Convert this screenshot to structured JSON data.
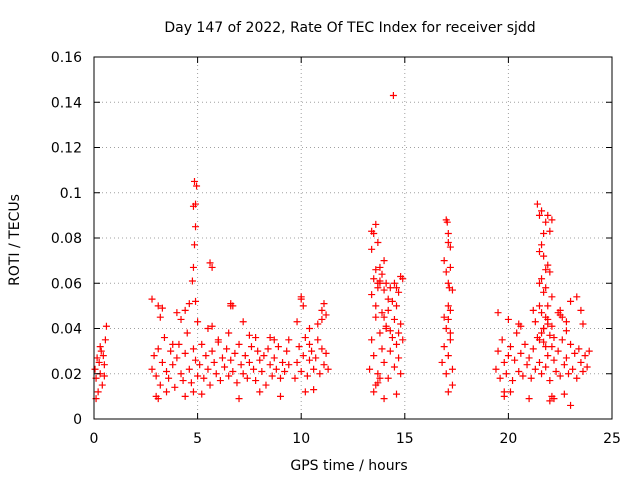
{
  "chart_data": {
    "type": "scatter",
    "title": "Day 147 of 2022, Rate Of TEC Index for receiver sjdd",
    "xlabel": "GPS time / hours",
    "ylabel": "ROTI / TECUs",
    "xlim": [
      0,
      25
    ],
    "ylim": [
      0,
      0.16
    ],
    "xticks": [
      0,
      5,
      10,
      15,
      20,
      25
    ],
    "yticks": [
      0,
      0.02,
      0.04,
      0.06,
      0.08,
      0.1,
      0.12,
      0.14,
      0.16
    ],
    "grid": true,
    "marker": "plus",
    "color": "#ff0000",
    "x": [
      0.05,
      0.1,
      0.15,
      0.2,
      0.25,
      0.3,
      0.35,
      0.4,
      0.45,
      0.5,
      0.55,
      0.6,
      0.1,
      0.3,
      0.5,
      2.8,
      2.9,
      3.0,
      3.1,
      3.2,
      3.3,
      3.4,
      3.5,
      3.6,
      3.7,
      3.8,
      3.9,
      4.0,
      4.1,
      4.2,
      4.3,
      4.4,
      4.5,
      4.6,
      4.7,
      4.8,
      4.9,
      5.0,
      5.1,
      5.2,
      5.3,
      5.4,
      5.5,
      5.6,
      5.7,
      5.8,
      5.9,
      6.0,
      6.1,
      6.2,
      6.3,
      6.4,
      6.5,
      6.6,
      6.7,
      6.8,
      6.9,
      7.0,
      7.1,
      7.2,
      7.3,
      7.4,
      7.5,
      7.6,
      7.7,
      7.8,
      7.9,
      8.0,
      8.1,
      8.2,
      8.3,
      8.4,
      8.5,
      8.6,
      8.7,
      8.8,
      8.9,
      9.0,
      9.1,
      9.2,
      9.3,
      9.4,
      2.8,
      3.0,
      3.2,
      3.1,
      3.5,
      4.0,
      4.2,
      4.4,
      4.6,
      4.8,
      5.0,
      5.2,
      5.5,
      6.0,
      6.5,
      7.0,
      7.5,
      8.0,
      8.5,
      9.0,
      9.4,
      3.3,
      3.8,
      4.9,
      5.7,
      6.6,
      7.8,
      8.7,
      4.85,
      4.9,
      4.8,
      4.95,
      4.9,
      4.85,
      4.8,
      4.75,
      5.6,
      5.7,
      6.6,
      6.7,
      7.2,
      4.4,
      3.1,
      9.7,
      9.8,
      9.9,
      10.0,
      10.1,
      10.2,
      10.3,
      10.4,
      10.5,
      10.6,
      10.7,
      10.8,
      10.9,
      11.0,
      11.1,
      11.2,
      11.3,
      9.8,
      10.0,
      10.2,
      10.4,
      10.6,
      10.8,
      11.0,
      11.2,
      10.0,
      10.1,
      11.0,
      11.1,
      10.4,
      13.3,
      13.4,
      13.5,
      13.6,
      13.7,
      13.8,
      13.9,
      14.0,
      14.1,
      14.2,
      14.3,
      14.4,
      14.5,
      14.6,
      14.7,
      14.8,
      14.9,
      13.4,
      13.6,
      13.8,
      14.0,
      14.2,
      14.4,
      14.6,
      14.8,
      13.5,
      13.7,
      13.9,
      14.1,
      14.3,
      14.5,
      14.7,
      13.6,
      13.8,
      14.0,
      14.2,
      14.6,
      13.4,
      13.5,
      13.6,
      13.7,
      13.8,
      13.9,
      14.0,
      14.1,
      14.3,
      14.5,
      14.7,
      14.8,
      14.9,
      13.5,
      13.6,
      13.7,
      13.8,
      14.6,
      13.4,
      13.7,
      14.45,
      14.0,
      16.8,
      16.9,
      17.0,
      17.1,
      17.2,
      17.3,
      16.9,
      17.0,
      17.1,
      17.2,
      17.3,
      17.0,
      17.1,
      17.2,
      16.9,
      17.0,
      17.1,
      17.2,
      17.3,
      17.05,
      17.1,
      17.15,
      17.2,
      17.1,
      17.1,
      19.4,
      19.5,
      19.6,
      19.7,
      19.8,
      19.9,
      20.0,
      20.1,
      20.2,
      20.3,
      20.4,
      20.5,
      20.6,
      20.7,
      20.8,
      20.9,
      21.0,
      21.1,
      21.2,
      21.3,
      21.4,
      21.5,
      21.6,
      21.7,
      21.8,
      21.9,
      22.0,
      22.1,
      22.2,
      22.3,
      22.4,
      22.5,
      22.6,
      22.7,
      22.8,
      22.9,
      23.0,
      23.1,
      23.2,
      23.3,
      23.4,
      23.5,
      23.6,
      23.7,
      23.8,
      23.9,
      19.5,
      20.0,
      20.5,
      21.0,
      21.5,
      22.0,
      22.5,
      23.0,
      23.5,
      19.8,
      20.6,
      21.3,
      22.1,
      22.8,
      23.6,
      21.4,
      21.5,
      21.6,
      21.7,
      21.8,
      21.9,
      22.0,
      22.1,
      21.5,
      21.6,
      21.7,
      21.8,
      21.9,
      22.0,
      21.6,
      21.8,
      21.5,
      21.7,
      21.9,
      22.1,
      21.6,
      21.8,
      21.7,
      21.9,
      21.5,
      21.6,
      21.7,
      21.8,
      21.9,
      22.0,
      22.1,
      22.2,
      22.5,
      23.0,
      23.3,
      22.4,
      22.6,
      22.8,
      21.2,
      20.1,
      19.8,
      22.2,
      22.7
    ],
    "y": [
      0.022,
      0.018,
      0.027,
      0.012,
      0.025,
      0.02,
      0.03,
      0.015,
      0.028,
      0.024,
      0.035,
      0.041,
      0.009,
      0.032,
      0.019,
      0.022,
      0.028,
      0.019,
      0.031,
      0.015,
      0.025,
      0.036,
      0.021,
      0.018,
      0.03,
      0.024,
      0.014,
      0.027,
      0.033,
      0.02,
      0.017,
      0.029,
      0.038,
      0.022,
      0.016,
      0.031,
      0.026,
      0.019,
      0.024,
      0.033,
      0.018,
      0.028,
      0.022,
      0.015,
      0.03,
      0.025,
      0.02,
      0.034,
      0.017,
      0.027,
      0.023,
      0.031,
      0.019,
      0.026,
      0.021,
      0.029,
      0.016,
      0.033,
      0.024,
      0.02,
      0.028,
      0.018,
      0.025,
      0.032,
      0.022,
      0.017,
      0.03,
      0.026,
      0.021,
      0.028,
      0.015,
      0.031,
      0.024,
      0.019,
      0.027,
      0.022,
      0.032,
      0.018,
      0.025,
      0.021,
      0.03,
      0.024,
      0.053,
      0.01,
      0.045,
      0.009,
      0.012,
      0.047,
      0.044,
      0.01,
      0.051,
      0.012,
      0.043,
      0.011,
      0.04,
      0.035,
      0.038,
      0.009,
      0.037,
      0.012,
      0.036,
      0.01,
      0.035,
      0.049,
      0.033,
      0.052,
      0.041,
      0.05,
      0.036,
      0.035,
      0.105,
      0.095,
      0.094,
      0.103,
      0.085,
      0.077,
      0.067,
      0.061,
      0.069,
      0.067,
      0.051,
      0.05,
      0.043,
      0.048,
      0.05,
      0.018,
      0.025,
      0.032,
      0.021,
      0.028,
      0.036,
      0.019,
      0.026,
      0.03,
      0.022,
      0.027,
      0.035,
      0.02,
      0.031,
      0.024,
      0.029,
      0.022,
      0.043,
      0.053,
      0.012,
      0.04,
      0.013,
      0.042,
      0.044,
      0.046,
      0.054,
      0.05,
      0.048,
      0.051,
      0.033,
      0.022,
      0.035,
      0.028,
      0.045,
      0.02,
      0.038,
      0.031,
      0.025,
      0.04,
      0.018,
      0.03,
      0.036,
      0.023,
      0.033,
      0.027,
      0.02,
      0.035,
      0.055,
      0.05,
      0.06,
      0.045,
      0.048,
      0.052,
      0.05,
      0.042,
      0.062,
      0.058,
      0.047,
      0.041,
      0.039,
      0.044,
      0.038,
      0.066,
      0.061,
      0.057,
      0.053,
      0.058,
      0.083,
      0.082,
      0.086,
      0.078,
      0.067,
      0.064,
      0.07,
      0.06,
      0.058,
      0.06,
      0.056,
      0.063,
      0.062,
      0.012,
      0.015,
      0.016,
      0.018,
      0.011,
      0.075,
      0.06,
      0.143,
      0.009,
      0.025,
      0.032,
      0.02,
      0.028,
      0.035,
      0.022,
      0.045,
      0.04,
      0.012,
      0.038,
      0.015,
      0.088,
      0.082,
      0.076,
      0.07,
      0.065,
      0.06,
      0.067,
      0.057,
      0.087,
      0.078,
      0.058,
      0.048,
      0.044,
      0.05,
      0.022,
      0.03,
      0.018,
      0.035,
      0.025,
      0.02,
      0.028,
      0.032,
      0.017,
      0.026,
      0.038,
      0.021,
      0.029,
      0.019,
      0.033,
      0.024,
      0.027,
      0.018,
      0.031,
      0.022,
      0.036,
      0.025,
      0.02,
      0.034,
      0.023,
      0.028,
      0.017,
      0.032,
      0.026,
      0.021,
      0.03,
      0.019,
      0.035,
      0.024,
      0.027,
      0.02,
      0.033,
      0.022,
      0.029,
      0.018,
      0.031,
      0.025,
      0.021,
      0.028,
      0.023,
      0.03,
      0.047,
      0.044,
      0.042,
      0.009,
      0.05,
      0.008,
      0.046,
      0.006,
      0.048,
      0.012,
      0.041,
      0.043,
      0.01,
      0.039,
      0.042,
      0.095,
      0.09,
      0.092,
      0.082,
      0.087,
      0.09,
      0.083,
      0.088,
      0.074,
      0.077,
      0.072,
      0.066,
      0.068,
      0.065,
      0.062,
      0.058,
      0.06,
      0.056,
      0.05,
      0.054,
      0.047,
      0.045,
      0.04,
      0.042,
      0.035,
      0.038,
      0.04,
      0.032,
      0.044,
      0.037,
      0.041,
      0.036,
      0.048,
      0.052,
      0.054,
      0.047,
      0.045,
      0.043,
      0.048,
      0.012,
      0.01,
      0.009,
      0.011
    ]
  }
}
